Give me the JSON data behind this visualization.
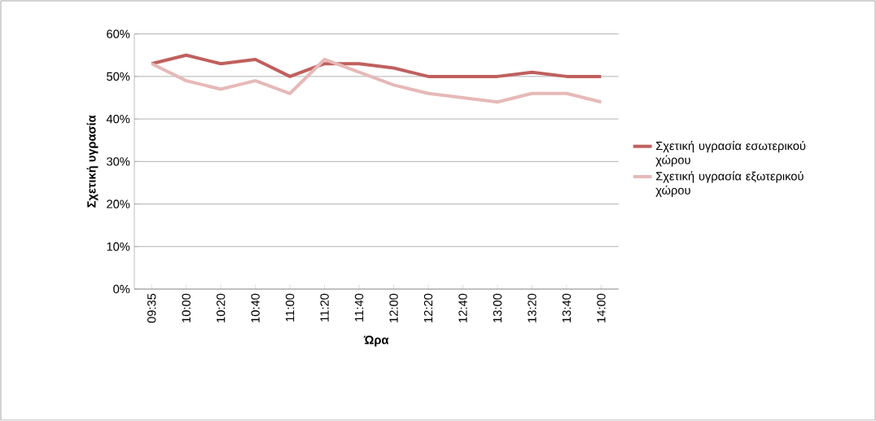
{
  "chart_data": {
    "type": "line",
    "xlabel": "Ώρα",
    "ylabel": "Σχετική υγρασία",
    "categories": [
      "09:35",
      "10:00",
      "10:20",
      "10:40",
      "11:00",
      "11:20",
      "11:40",
      "12:00",
      "12:20",
      "12:40",
      "13:00",
      "13:20",
      "13:40",
      "14:00"
    ],
    "series": [
      {
        "name": "Σχετική υγρασία εσωτερικού χώρου",
        "color": "#c0605e",
        "values": [
          53,
          55,
          53,
          54,
          50,
          53,
          53,
          52,
          50,
          50,
          50,
          51,
          50,
          50
        ]
      },
      {
        "name": "Σχετική υγρασία εξωτερικού χώρου",
        "color": "#e6b9b8",
        "values": [
          53,
          49,
          47,
          49,
          46,
          54,
          51,
          48,
          46,
          45,
          44,
          46,
          46,
          44
        ]
      }
    ],
    "ylim": [
      0,
      60
    ],
    "yticks": [
      {
        "value": 0,
        "label": "0%"
      },
      {
        "value": 10,
        "label": "10%"
      },
      {
        "value": 20,
        "label": "20%"
      },
      {
        "value": 30,
        "label": "30%"
      },
      {
        "value": 40,
        "label": "40%"
      },
      {
        "value": 50,
        "label": "50%"
      },
      {
        "value": 60,
        "label": "60%"
      }
    ],
    "grid": "y",
    "legend": "right",
    "marker": "none",
    "line_style": "solid"
  }
}
